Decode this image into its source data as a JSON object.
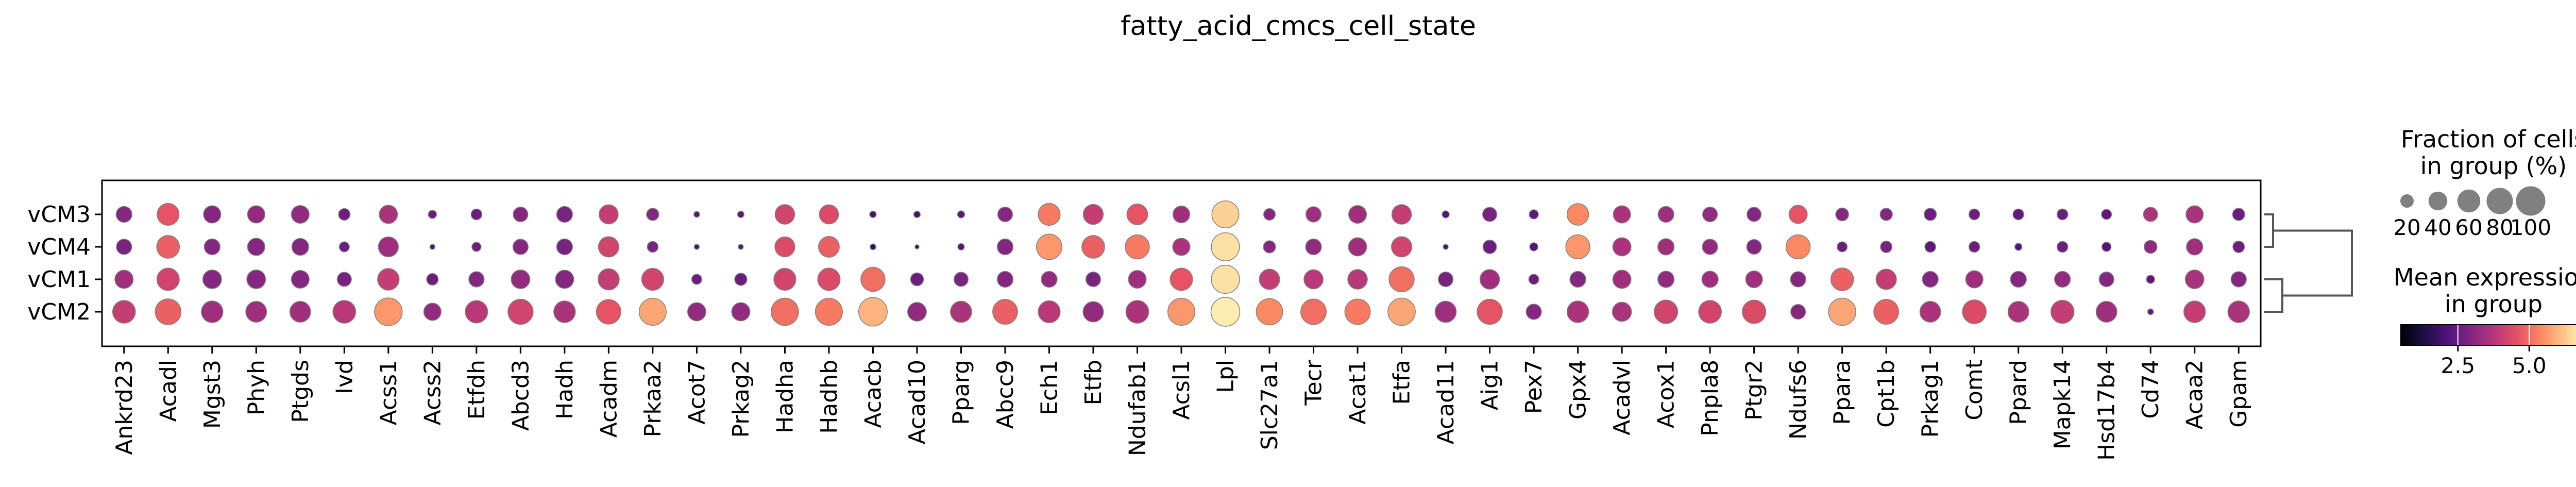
{
  "chart_data": {
    "type": "dotplot",
    "title": "fatty_acid_cmcs_cell_state",
    "rows": [
      "vCM3",
      "vCM4",
      "vCM1",
      "vCM2"
    ],
    "genes": [
      "Ankrd23",
      "Acadl",
      "Mgst3",
      "Phyh",
      "Ptgds",
      "Ivd",
      "Acss1",
      "Acss2",
      "Etfdh",
      "Abcd3",
      "Hadh",
      "Acadm",
      "Prkaa2",
      "Acot7",
      "Prkag2",
      "Hadha",
      "Hadhb",
      "Acacb",
      "Acad10",
      "Pparg",
      "Abcc9",
      "Ech1",
      "Etfb",
      "Ndufab1",
      "Acsl1",
      "Lpl",
      "Slc27a1",
      "Tecr",
      "Acat1",
      "Etfa",
      "Acad11",
      "Aig1",
      "Pex7",
      "Gpx4",
      "Acadvl",
      "Acox1",
      "Pnpla8",
      "Ptgr2",
      "Ndufs6",
      "Ppara",
      "Cpt1b",
      "Prkag1",
      "Comt",
      "Ppard",
      "Mapk14",
      "Hsd17b4",
      "Cd74",
      "Acaa2",
      "Gpam"
    ],
    "fraction": [
      [
        30,
        58,
        36,
        36,
        38,
        16,
        40,
        8,
        14,
        26,
        30,
        44,
        18,
        4,
        5,
        46,
        44,
        5,
        5,
        6,
        26,
        58,
        48,
        52,
        34,
        88,
        16,
        28,
        38,
        46,
        6,
        24,
        10,
        56,
        36,
        30,
        26,
        24,
        40,
        20,
        18,
        18,
        14,
        14,
        14,
        12,
        24,
        36,
        18
      ],
      [
        28,
        62,
        30,
        36,
        34,
        12,
        48,
        3,
        10,
        28,
        30,
        50,
        14,
        3,
        3,
        48,
        52,
        4,
        2,
        5,
        30,
        78,
        62,
        70,
        36,
        95,
        18,
        30,
        40,
        50,
        3,
        22,
        8,
        70,
        40,
        32,
        28,
        26,
        70,
        12,
        16,
        14,
        14,
        6,
        14,
        10,
        20,
        32,
        16
      ],
      [
        40,
        60,
        42,
        42,
        38,
        24,
        56,
        16,
        28,
        42,
        40,
        54,
        58,
        12,
        18,
        58,
        60,
        70,
        20,
        24,
        30,
        30,
        26,
        38,
        60,
        96,
        50,
        44,
        46,
        76,
        26,
        46,
        12,
        30,
        40,
        32,
        32,
        34,
        28,
        62,
        50,
        30,
        36,
        30,
        30,
        26,
        8,
        42,
        28
      ],
      [
        62,
        80,
        56,
        52,
        52,
        62,
        92,
        36,
        60,
        76,
        56,
        72,
        88,
        40,
        40,
        90,
        88,
        98,
        42,
        54,
        74,
        58,
        50,
        62,
        88,
        100,
        84,
        78,
        78,
        90,
        54,
        76,
        28,
        56,
        44,
        66,
        62,
        66,
        26,
        90,
        74,
        52,
        68,
        52,
        64,
        52,
        4,
        56,
        56
      ]
    ],
    "expression": [
      [
        3.0,
        4.6,
        3.0,
        3.2,
        3.2,
        2.6,
        3.6,
        2.6,
        2.6,
        3.0,
        2.8,
        4.0,
        3.0,
        2.2,
        2.4,
        4.2,
        4.4,
        2.0,
        2.0,
        2.4,
        3.0,
        5.2,
        4.0,
        4.6,
        3.4,
        6.4,
        3.0,
        3.4,
        3.4,
        4.0,
        2.2,
        2.8,
        2.4,
        5.4,
        3.6,
        3.4,
        3.2,
        3.0,
        4.6,
        3.0,
        3.0,
        2.6,
        2.6,
        2.4,
        2.6,
        2.4,
        3.6,
        3.6,
        2.6
      ],
      [
        2.8,
        4.8,
        3.0,
        3.0,
        3.0,
        2.6,
        3.4,
        2.2,
        2.6,
        3.0,
        2.8,
        4.2,
        2.8,
        2.0,
        2.2,
        4.4,
        4.8,
        1.8,
        1.8,
        2.2,
        3.0,
        5.6,
        4.8,
        5.2,
        3.6,
        6.6,
        3.0,
        3.2,
        3.4,
        4.2,
        2.0,
        2.6,
        2.2,
        5.6,
        3.6,
        3.4,
        3.2,
        3.0,
        5.4,
        2.6,
        2.8,
        2.4,
        2.6,
        2.2,
        2.6,
        2.2,
        3.2,
        3.4,
        2.6
      ],
      [
        3.4,
        4.2,
        3.0,
        3.0,
        3.0,
        2.8,
        4.0,
        2.6,
        3.0,
        3.2,
        3.0,
        4.0,
        4.2,
        2.6,
        2.6,
        4.2,
        4.4,
        5.0,
        2.6,
        2.8,
        3.0,
        3.2,
        2.8,
        3.4,
        4.6,
        6.6,
        4.0,
        3.8,
        3.8,
        5.0,
        2.8,
        3.4,
        2.6,
        3.0,
        3.4,
        3.2,
        3.4,
        3.4,
        3.0,
        4.8,
        4.0,
        3.0,
        3.4,
        3.0,
        3.2,
        3.0,
        2.4,
        3.6,
        3.0
      ],
      [
        4.0,
        4.8,
        3.4,
        3.4,
        3.4,
        3.8,
        5.6,
        3.2,
        3.8,
        4.2,
        3.6,
        4.6,
        5.8,
        3.2,
        3.2,
        5.0,
        5.2,
        6.0,
        3.2,
        3.6,
        4.8,
        3.8,
        3.2,
        3.6,
        5.6,
        6.8,
        5.4,
        5.0,
        5.2,
        5.8,
        3.4,
        4.6,
        3.0,
        3.6,
        3.6,
        4.2,
        4.2,
        4.4,
        3.0,
        5.8,
        4.8,
        3.6,
        4.4,
        3.6,
        4.0,
        3.4,
        2.4,
        4.0,
        3.6
      ]
    ],
    "size_legend": {
      "title_line1": "Fraction of cells",
      "title_line2": "in group (%)",
      "values": [
        20,
        40,
        60,
        80,
        100
      ],
      "labels": [
        "20",
        "40",
        "60",
        "80",
        "100"
      ]
    },
    "color_legend": {
      "title_line1": "Mean expression",
      "title_line2": "in group",
      "vmin": 0.5,
      "vmax": 7.0,
      "ticks": [
        2.5,
        5.0
      ],
      "tick_labels": [
        "2.5",
        "5.0"
      ],
      "colormap": "magma"
    },
    "dendrogram": {
      "pairs": [
        [
          "vCM3",
          "vCM4"
        ],
        [
          "vCM1",
          "vCM2"
        ]
      ]
    }
  }
}
